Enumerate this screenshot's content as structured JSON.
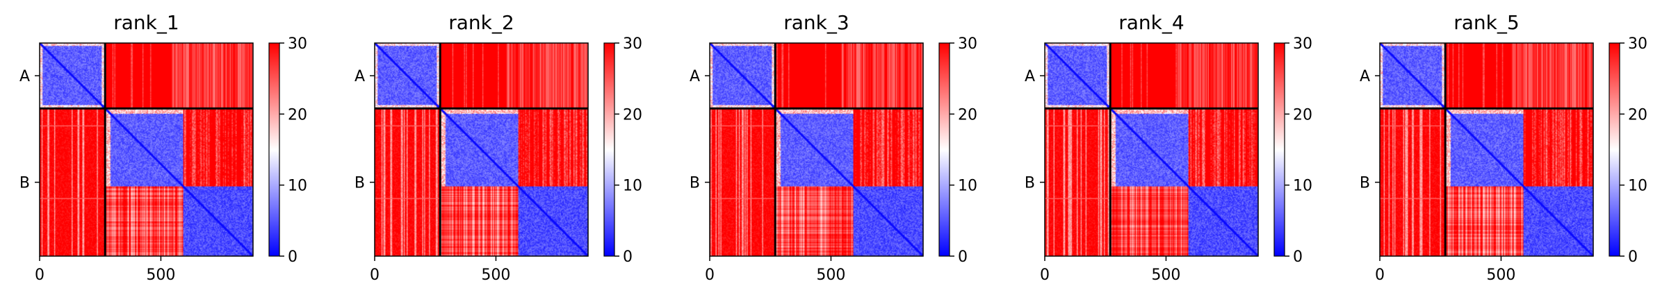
{
  "chart_data": {
    "type": "heatmap",
    "description_colors": {
      "colormap": "bwr",
      "low_color": "#0000ff",
      "mid_color": "#ffffff",
      "high_color": "#ff0000",
      "divider_color": "#000000"
    },
    "colorbar": {
      "vmin": 0,
      "vmax": 30,
      "ticks": [
        "0",
        "10",
        "20",
        "30"
      ]
    },
    "x_axis": {
      "lim": [
        0,
        880
      ],
      "ticks": [
        0,
        500
      ],
      "tick_labels": [
        "0",
        "500"
      ]
    },
    "chain_boundary": 270,
    "chains": [
      {
        "label": "A",
        "start": 0,
        "end": 270
      },
      {
        "label": "B",
        "start": 270,
        "end": 880
      }
    ],
    "panels": [
      {
        "title": "rank_1"
      },
      {
        "title": "rank_2"
      },
      {
        "title": "rank_3"
      },
      {
        "title": "rank_4"
      },
      {
        "title": "rank_5"
      }
    ],
    "blocks_description": [
      {
        "rows": [
          0,
          270
        ],
        "cols": [
          0,
          270
        ],
        "level": "low"
      },
      {
        "rows": [
          270,
          590
        ],
        "cols": [
          270,
          590
        ],
        "level": "low"
      },
      {
        "rows": [
          590,
          880
        ],
        "cols": [
          590,
          880
        ],
        "level": "low"
      },
      {
        "rows": [
          0,
          270
        ],
        "cols": [
          270,
          880
        ],
        "level": "high"
      },
      {
        "rows": [
          270,
          880
        ],
        "cols": [
          0,
          270
        ],
        "level": "high"
      },
      {
        "rows": [
          270,
          590
        ],
        "cols": [
          590,
          880
        ],
        "level": "mixed"
      },
      {
        "rows": [
          590,
          880
        ],
        "cols": [
          270,
          590
        ],
        "level": "mixed"
      }
    ]
  }
}
